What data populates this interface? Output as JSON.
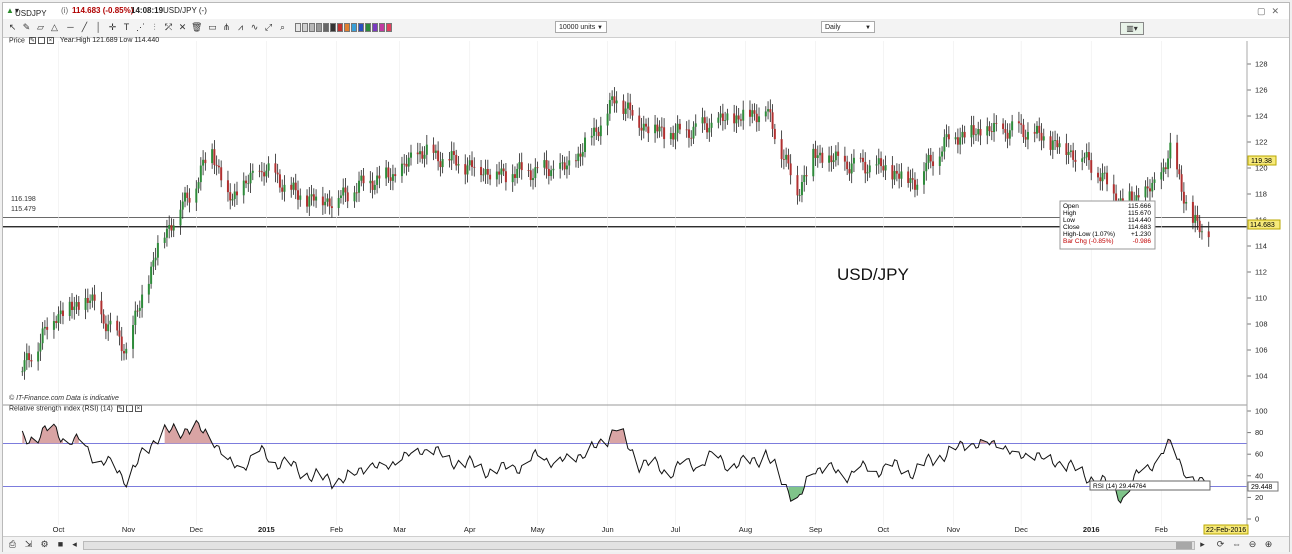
{
  "window": {
    "symbol": "USDJPY",
    "info_marker": "(i)",
    "price": "114.683 (-0.85%)",
    "time": "14:08:19",
    "symbol_desc": "USD/JPY (-)"
  },
  "toolbar": {
    "units_value": "10000 units",
    "period_value": "Daily"
  },
  "price_panel": {
    "label": "Price",
    "range_text": "Year:High 121.689 Low 114.440",
    "watermark": "USD/JPY",
    "source_note": "© IT-Finance.com  Data is indicative",
    "y_ticks": [
      "128",
      "126",
      "124",
      "122",
      "120",
      "118",
      "116",
      "114",
      "112",
      "110",
      "108",
      "106",
      "104"
    ],
    "hline_labels": [
      "116.198",
      "115.479"
    ],
    "last_price_tag": "114.683",
    "marker_tag": "119.38",
    "tooltip": {
      "rows": [
        {
          "label": "Open",
          "value": "115.666"
        },
        {
          "label": "High",
          "value": "115.670"
        },
        {
          "label": "Low",
          "value": "114.440"
        },
        {
          "label": "Close",
          "value": "114.683"
        },
        {
          "label": "High-Low (1.07%)",
          "value": "+1.230"
        },
        {
          "label": "Bar Chg (-0.85%)",
          "value": "-0.986"
        }
      ]
    }
  },
  "rsi_panel": {
    "label": "Relative strength index (RSI) (14)",
    "y_ticks": [
      "100",
      "80",
      "60",
      "40",
      "20",
      "0"
    ],
    "levels": [
      70,
      30
    ],
    "value_box": "RSI (14)   29.44764",
    "last_tag": "29.448"
  },
  "x_axis": {
    "ticks": [
      "Oct",
      "Nov",
      "Dec",
      "2015",
      "Feb",
      "Mar",
      "Apr",
      "May",
      "Jun",
      "Jul",
      "Aug",
      "Sep",
      "Oct",
      "Nov",
      "Dec",
      "2016",
      "Feb"
    ],
    "last_date_tag": "22-Feb-2016"
  },
  "chart_data": [
    {
      "type": "candlestick",
      "title": "USD/JPY",
      "ylim": [
        103,
        129
      ],
      "x": [
        "2014-09-15",
        "2014-09-30",
        "2014-10-15",
        "2014-10-31",
        "2014-11-15",
        "2014-11-30",
        "2014-12-08",
        "2014-12-15",
        "2014-12-31",
        "2015-01-15",
        "2015-01-31",
        "2015-02-15",
        "2015-02-28",
        "2015-03-10",
        "2015-03-31",
        "2015-04-15",
        "2015-04-30",
        "2015-05-15",
        "2015-05-31",
        "2015-06-05",
        "2015-06-15",
        "2015-06-30",
        "2015-07-15",
        "2015-07-31",
        "2015-08-10",
        "2015-08-24",
        "2015-08-31",
        "2015-09-15",
        "2015-09-30",
        "2015-10-15",
        "2015-10-31",
        "2015-11-15",
        "2015-11-30",
        "2015-12-15",
        "2015-12-31",
        "2016-01-15",
        "2016-01-29",
        "2016-02-05",
        "2016-02-15",
        "2016-02-22"
      ],
      "values": [
        104.5,
        108.8,
        109.8,
        106.0,
        114.5,
        118.5,
        121.6,
        117.5,
        120.0,
        117.8,
        117.5,
        119.0,
        119.5,
        121.3,
        120.2,
        119.5,
        119.8,
        120.0,
        124.0,
        125.5,
        123.5,
        122.5,
        123.3,
        124.0,
        124.5,
        118.2,
        121.0,
        120.3,
        120.0,
        119.0,
        122.5,
        122.8,
        123.0,
        122.0,
        120.5,
        117.2,
        118.5,
        121.3,
        115.8,
        114.683
      ],
      "horizontal_lines": [
        116.198,
        115.479
      ],
      "annotations": {
        "open": 115.666,
        "high": 115.67,
        "low": 114.44,
        "close": 114.683
      }
    },
    {
      "type": "line",
      "title": "Relative strength index (RSI) (14)",
      "ylim": [
        0,
        100
      ],
      "levels": [
        70,
        30
      ],
      "x": [
        "2014-09-15",
        "2014-09-30",
        "2014-10-15",
        "2014-10-31",
        "2014-11-15",
        "2014-11-30",
        "2014-12-08",
        "2014-12-15",
        "2014-12-31",
        "2015-01-15",
        "2015-01-31",
        "2015-02-15",
        "2015-02-28",
        "2015-03-10",
        "2015-03-31",
        "2015-04-15",
        "2015-04-30",
        "2015-05-15",
        "2015-05-31",
        "2015-06-05",
        "2015-06-15",
        "2015-06-30",
        "2015-07-15",
        "2015-07-31",
        "2015-08-10",
        "2015-08-24",
        "2015-08-31",
        "2015-09-15",
        "2015-09-30",
        "2015-10-15",
        "2015-10-31",
        "2015-11-15",
        "2015-11-30",
        "2015-12-15",
        "2015-12-31",
        "2016-01-15",
        "2016-01-29",
        "2016-02-05",
        "2016-02-15",
        "2016-02-22"
      ],
      "values": [
        74,
        82,
        62,
        38,
        80,
        84,
        78,
        48,
        60,
        45,
        34,
        48,
        52,
        66,
        50,
        44,
        56,
        54,
        72,
        85,
        52,
        45,
        56,
        50,
        60,
        14,
        48,
        42,
        48,
        45,
        64,
        72,
        60,
        55,
        40,
        22,
        56,
        67,
        35,
        29.448
      ]
    }
  ]
}
